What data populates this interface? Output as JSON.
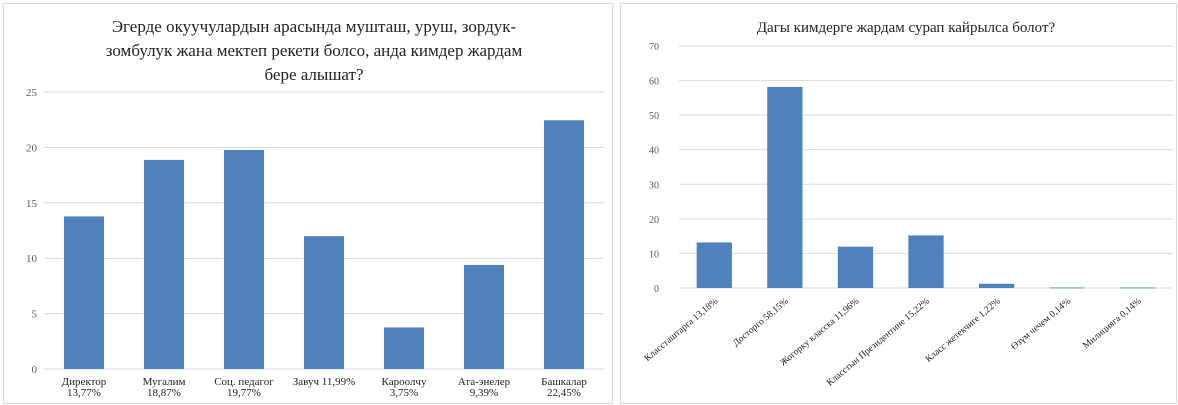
{
  "chart_data": [
    {
      "type": "bar",
      "title_lines": [
        "Эгерде окуучулардын арасында мушташ, уруш, зордук-",
        "зомбулук жана мектеп рекети болсо, анда кимдер жардам",
        "бере алышат?"
      ],
      "categories": [
        [
          "Директор",
          "13,77%"
        ],
        [
          "Мугалим",
          "18,87%"
        ],
        [
          "Соц. педагог",
          "19,77%"
        ],
        [
          "Завуч 11,99%"
        ],
        [
          "Кароолчу",
          "3,75%"
        ],
        [
          "Ата-энелер",
          "9,39%"
        ],
        [
          "Башкалар",
          "22,45%"
        ]
      ],
      "values": [
        13.77,
        18.87,
        19.77,
        11.99,
        3.75,
        9.39,
        22.45
      ],
      "ylim": [
        0,
        25
      ],
      "yticks": [
        "0",
        "5",
        "10",
        "15",
        "20",
        "25"
      ],
      "grid": true,
      "legend": "none",
      "bar_color": "#4f81bd"
    },
    {
      "type": "bar",
      "title_lines": [
        "Дагы кимдерге жардам сурап кайрылса болот?"
      ],
      "categories": [
        "Классташтарга 13,18%",
        "Досторго 58,15%",
        "Жогорку класска 11,96%",
        "Класстын Президентине 15,22%",
        "Класс жетекчиге 1,22%",
        "Өзүм чечем 0,14%",
        "Милицияга 0,14%"
      ],
      "values": [
        13.18,
        58.15,
        11.96,
        15.22,
        1.22,
        0.14,
        0.14
      ],
      "ylim": [
        0,
        70
      ],
      "yticks": [
        "0",
        "10",
        "20",
        "30",
        "40",
        "50",
        "60",
        "70"
      ],
      "grid": true,
      "legend": "none",
      "bar_color": "#4f81bd"
    }
  ]
}
